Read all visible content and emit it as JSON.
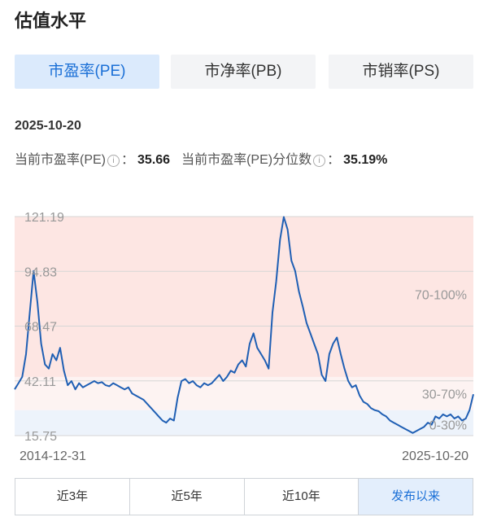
{
  "header": {
    "title": "估值水平"
  },
  "tabs": [
    {
      "label": "市盈率(PE)",
      "active": true
    },
    {
      "label": "市净率(PB)",
      "active": false
    },
    {
      "label": "市销率(PS)",
      "active": false
    }
  ],
  "summary": {
    "date": "2025-10-20",
    "pe_label": "当前市盈率(PE)",
    "pe_value": "35.66",
    "pct_label": "当前市盈率(PE)分位数",
    "pct_value": "35.19%",
    "colon": "："
  },
  "range_buttons": [
    {
      "label": "近3年",
      "active": false
    },
    {
      "label": "近5年",
      "active": false
    },
    {
      "label": "近10年",
      "active": false
    },
    {
      "label": "发布以来",
      "active": true
    }
  ],
  "colors": {
    "line": "#1f5fb4",
    "band_high": "#fde6e3",
    "band_mid": "#fdf3f2",
    "band_low": "#edf3fb",
    "grid": "#d6d6d6",
    "label": "#999999"
  },
  "chart_data": {
    "type": "line",
    "y_ticks": [
      15.75,
      42.11,
      68.47,
      94.83,
      121.19
    ],
    "y_tick_labels": [
      "15.75",
      "42.11",
      "68.47",
      "94.83",
      "121.19"
    ],
    "ylim": [
      15.75,
      121.19
    ],
    "x_start_label": "2014-12-31",
    "x_end_label": "2025-10-20",
    "bands": [
      {
        "label": "70-100%",
        "from": 44,
        "to": 121.19
      },
      {
        "label": "30-70%",
        "from": 28,
        "to": 44
      },
      {
        "label": "0-30%",
        "from": 15.75,
        "to": 28
      }
    ],
    "series": [
      {
        "values": [
          38,
          41,
          44,
          55,
          75,
          95,
          80,
          60,
          50,
          48,
          55,
          52,
          58,
          47,
          40,
          42,
          38,
          41,
          39,
          40,
          41,
          42,
          41,
          41.5,
          40,
          39.5,
          41,
          40,
          39,
          38,
          39,
          36,
          35,
          34,
          33,
          31,
          29,
          27,
          25,
          23,
          22,
          24,
          23,
          34,
          42,
          43,
          41,
          42,
          40,
          39,
          41,
          40,
          41,
          43,
          45,
          42,
          44,
          47,
          46,
          50,
          52,
          49,
          60,
          65,
          58,
          55,
          52,
          48,
          75,
          90,
          110,
          121,
          115,
          100,
          95,
          85,
          78,
          70,
          65,
          60,
          55,
          45,
          42,
          55,
          60,
          63,
          55,
          48,
          42,
          39,
          40,
          35,
          32,
          31,
          29,
          28,
          27.5,
          26,
          25,
          23,
          22,
          21,
          20,
          19,
          18,
          17,
          18,
          19,
          20,
          22,
          21,
          25,
          24,
          26,
          25,
          26,
          24,
          25,
          23,
          24,
          28,
          35.66
        ]
      }
    ]
  }
}
